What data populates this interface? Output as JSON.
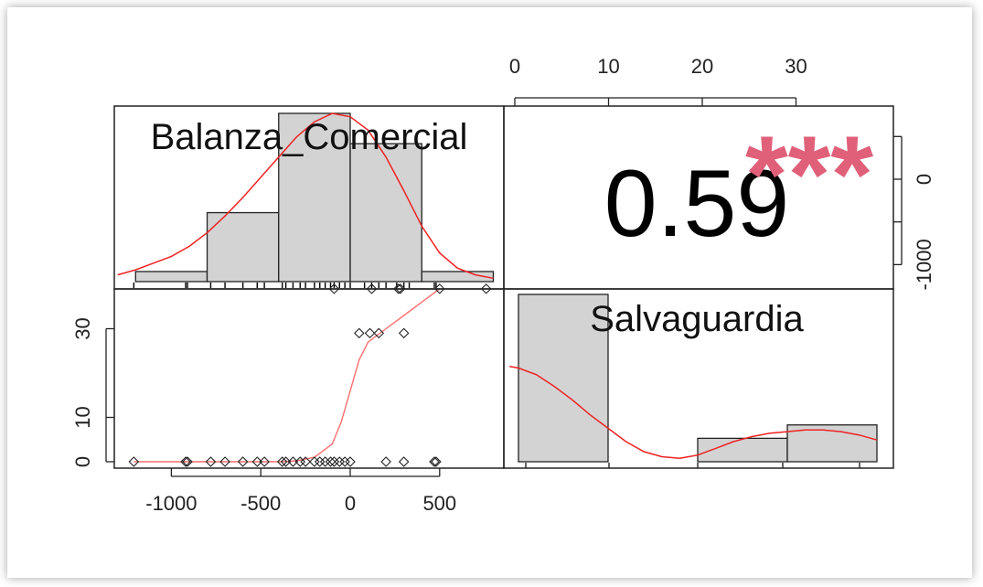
{
  "chart_data": {
    "type": "scatter-matrix",
    "variables": [
      "Balanza_Comercial",
      "Salvaguardia"
    ],
    "correlation": {
      "value": "0.59",
      "significance": "***"
    },
    "axes": {
      "balanza_ticks": [
        -1000,
        -500,
        0,
        500
      ],
      "salva_ticks": [
        0,
        10,
        20,
        30
      ]
    },
    "hist_balanza": {
      "bins": [
        {
          "x0": -1200,
          "x1": -800,
          "h": 0.06
        },
        {
          "x0": -800,
          "x1": -400,
          "h": 0.41
        },
        {
          "x0": -400,
          "x1": 0,
          "h": 1.0
        },
        {
          "x0": 0,
          "x1": 400,
          "h": 0.82
        },
        {
          "x0": 400,
          "x1": 800,
          "h": 0.06
        }
      ],
      "density": [
        [
          -1300,
          0.04
        ],
        [
          -1200,
          0.07
        ],
        [
          -1100,
          0.11
        ],
        [
          -1000,
          0.15
        ],
        [
          -900,
          0.21
        ],
        [
          -800,
          0.29
        ],
        [
          -700,
          0.39
        ],
        [
          -600,
          0.5
        ],
        [
          -500,
          0.62
        ],
        [
          -400,
          0.74
        ],
        [
          -300,
          0.86
        ],
        [
          -200,
          0.95
        ],
        [
          -100,
          1.0
        ],
        [
          0,
          0.98
        ],
        [
          100,
          0.9
        ],
        [
          200,
          0.74
        ],
        [
          300,
          0.54
        ],
        [
          400,
          0.33
        ],
        [
          500,
          0.17
        ],
        [
          600,
          0.08
        ],
        [
          700,
          0.04
        ],
        [
          800,
          0.02
        ]
      ],
      "rug": [
        -1210,
        -920,
        -910,
        -780,
        -700,
        -600,
        -520,
        -480,
        -380,
        -360,
        -320,
        -280,
        -250,
        -200,
        -170,
        -140,
        -110,
        -90,
        -60,
        -30,
        0,
        80,
        120,
        160,
        200,
        260,
        300,
        330,
        470,
        480
      ]
    },
    "hist_salva": {
      "bins": [
        {
          "x0": 0,
          "x1": 10,
          "h": 1.0
        },
        {
          "x0": 10,
          "x1": 20,
          "h": 0.0
        },
        {
          "x0": 20,
          "x1": 30,
          "h": 0.14
        },
        {
          "x0": 30,
          "x1": 40,
          "h": 0.22
        }
      ],
      "density": [
        [
          -1,
          0.57
        ],
        [
          0,
          0.56
        ],
        [
          2,
          0.52
        ],
        [
          4,
          0.45
        ],
        [
          6,
          0.37
        ],
        [
          8,
          0.28
        ],
        [
          10,
          0.2
        ],
        [
          12,
          0.12
        ],
        [
          14,
          0.06
        ],
        [
          16,
          0.03
        ],
        [
          18,
          0.02
        ],
        [
          20,
          0.04
        ],
        [
          22,
          0.08
        ],
        [
          24,
          0.12
        ],
        [
          26,
          0.15
        ],
        [
          28,
          0.17
        ],
        [
          30,
          0.18
        ],
        [
          32,
          0.19
        ],
        [
          34,
          0.19
        ],
        [
          36,
          0.18
        ],
        [
          38,
          0.16
        ],
        [
          40,
          0.13
        ]
      ]
    },
    "scatter": {
      "x": [
        -1210,
        -920,
        -910,
        -780,
        -700,
        -600,
        -520,
        -480,
        -380,
        -360,
        -320,
        -280,
        -250,
        -200,
        -170,
        -140,
        -110,
        -90,
        -60,
        -30,
        0,
        200,
        300,
        470,
        480,
        50,
        110,
        160,
        300,
        -90,
        120,
        270,
        280,
        500,
        760
      ],
      "y": [
        0,
        0,
        0,
        0,
        0,
        0,
        0,
        0,
        0,
        0,
        0,
        0,
        0,
        0,
        0,
        0,
        0,
        0,
        0,
        0,
        0,
        0,
        0,
        0,
        0,
        29,
        29,
        29,
        29,
        39,
        39,
        39,
        39,
        39,
        39
      ],
      "smooth": [
        [
          -1210,
          0
        ],
        [
          -900,
          0
        ],
        [
          -600,
          0
        ],
        [
          -400,
          0
        ],
        [
          -300,
          0.2
        ],
        [
          -200,
          1
        ],
        [
          -100,
          4
        ],
        [
          -50,
          9
        ],
        [
          0,
          16
        ],
        [
          50,
          23
        ],
        [
          100,
          27
        ],
        [
          200,
          30
        ],
        [
          300,
          33
        ],
        [
          400,
          36
        ],
        [
          500,
          39
        ],
        [
          600,
          41.5
        ]
      ]
    }
  }
}
